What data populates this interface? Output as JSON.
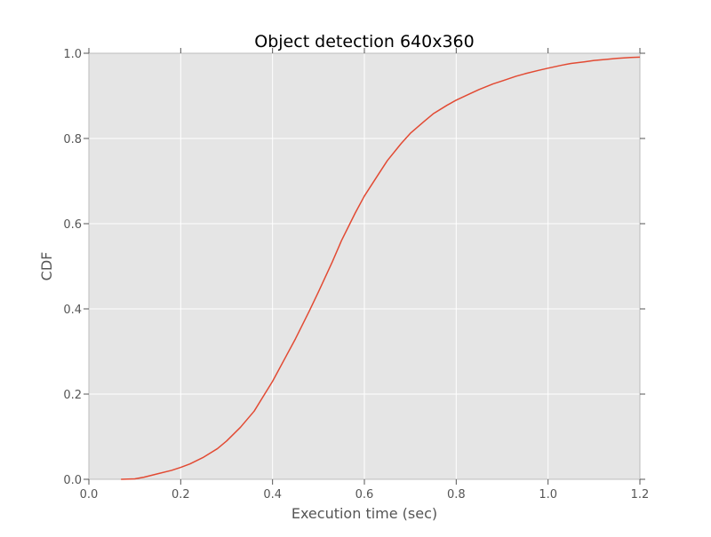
{
  "chart_data": {
    "type": "line",
    "title": "Object detection 640x360",
    "xlabel": "Execution time (sec)",
    "ylabel": "CDF",
    "xlim": [
      0.0,
      1.2
    ],
    "ylim": [
      0.0,
      1.0
    ],
    "xticks": [
      "0.0",
      "0.2",
      "0.4",
      "0.6",
      "0.8",
      "1.0",
      "1.2"
    ],
    "yticks": [
      "0.0",
      "0.2",
      "0.4",
      "0.6",
      "0.8",
      "1.0"
    ],
    "grid": true,
    "colors": {
      "background": "#e5e5e5",
      "grid": "#ffffff",
      "line": "#e24a33",
      "frame": "#bcbcbc"
    },
    "series": [
      {
        "x": [
          0.07,
          0.1,
          0.12,
          0.15,
          0.18,
          0.2,
          0.22,
          0.25,
          0.28,
          0.3,
          0.33,
          0.36,
          0.38,
          0.4,
          0.43,
          0.45,
          0.48,
          0.5,
          0.53,
          0.55,
          0.58,
          0.6,
          0.63,
          0.65,
          0.68,
          0.7,
          0.73,
          0.75,
          0.78,
          0.8,
          0.83,
          0.85,
          0.88,
          0.9,
          0.93,
          0.95,
          0.98,
          1.0,
          1.03,
          1.05,
          1.08,
          1.1,
          1.13,
          1.15,
          1.18,
          1.2
        ],
        "y": [
          0.0,
          0.001,
          0.005,
          0.013,
          0.021,
          0.028,
          0.036,
          0.052,
          0.072,
          0.09,
          0.122,
          0.16,
          0.195,
          0.23,
          0.29,
          0.33,
          0.395,
          0.44,
          0.51,
          0.56,
          0.625,
          0.665,
          0.715,
          0.748,
          0.788,
          0.812,
          0.84,
          0.858,
          0.878,
          0.89,
          0.905,
          0.915,
          0.928,
          0.935,
          0.946,
          0.952,
          0.96,
          0.965,
          0.972,
          0.976,
          0.98,
          0.983,
          0.986,
          0.988,
          0.99,
          0.991
        ]
      }
    ]
  }
}
